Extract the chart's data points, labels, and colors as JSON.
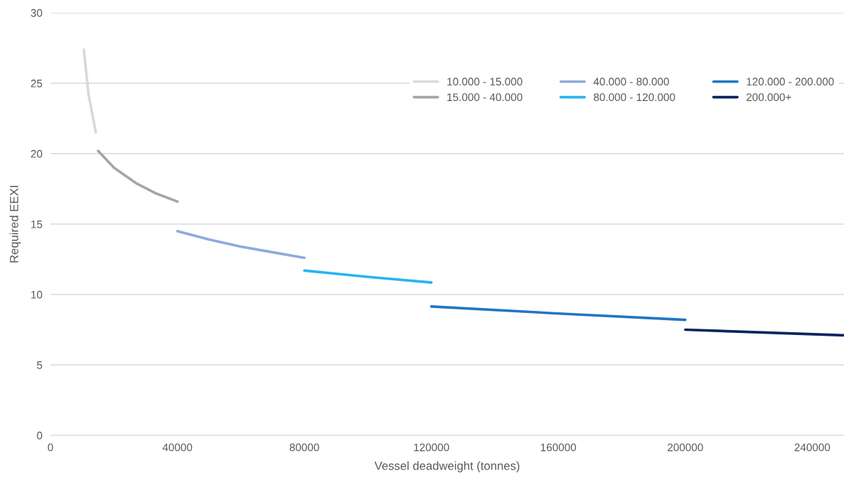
{
  "chart_data": {
    "type": "line",
    "xlabel": "Vessel deadweight (tonnes)",
    "ylabel": "Required EEXI",
    "xlim": [
      0,
      250000
    ],
    "xticks": [
      0,
      40000,
      80000,
      120000,
      160000,
      200000,
      240000
    ],
    "ylim": [
      0,
      30
    ],
    "yticks": [
      0,
      5,
      10,
      15,
      20,
      25,
      30
    ],
    "grid": "y",
    "legend": "top right",
    "marker": "none",
    "line_style": "solid",
    "series": [
      {
        "name": "10.000 - 15.000",
        "color": "#d9d9d9",
        "x": [
          10500,
          12000,
          14300
        ],
        "values": [
          27.4,
          24.2,
          21.5
        ]
      },
      {
        "name": "15.000 - 40.000",
        "color": "#a5a5a5",
        "x": [
          15000,
          20000,
          27000,
          33000,
          40000
        ],
        "values": [
          20.2,
          19.0,
          17.9,
          17.2,
          16.6
        ]
      },
      {
        "name": "40.000 - 80.000",
        "color": "#8faadc",
        "x": [
          40000,
          50000,
          60000,
          70000,
          80000
        ],
        "values": [
          14.5,
          13.9,
          13.4,
          13.0,
          12.6
        ]
      },
      {
        "name": "80.000 - 120.000",
        "color": "#29b5ef",
        "x": [
          80000,
          100000,
          120000
        ],
        "values": [
          11.7,
          11.25,
          10.85
        ]
      },
      {
        "name": "120.000 - 200.000",
        "color": "#2275c3",
        "x": [
          120000,
          160000,
          200000
        ],
        "values": [
          9.15,
          8.65,
          8.2
        ]
      },
      {
        "name": "200.000+",
        "color": "#0b2460",
        "x": [
          200000,
          250000
        ],
        "values": [
          7.5,
          7.1
        ]
      }
    ]
  }
}
